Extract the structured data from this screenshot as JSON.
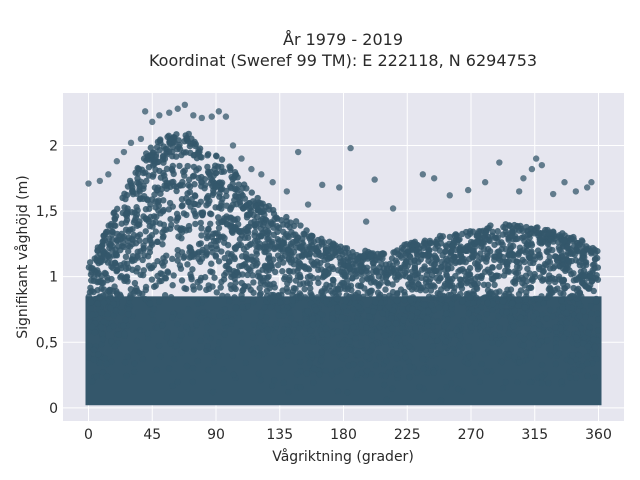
{
  "chart_data": {
    "type": "scatter",
    "title": [
      "År 1979 - 2019",
      "Koordinat (Sweref 99 TM): E 222118, N 6294753"
    ],
    "xlabel": "Vågriktning (grader)",
    "ylabel": "Signifikant våghöjd (m)",
    "xlim": [
      -18,
      378
    ],
    "ylim": [
      -0.1,
      2.4
    ],
    "xticks": [
      0,
      45,
      90,
      135,
      180,
      225,
      270,
      315,
      360
    ],
    "xtick_labels": [
      "0",
      "45",
      "90",
      "135",
      "180",
      "225",
      "270",
      "315",
      "360"
    ],
    "yticks": [
      0,
      0.5,
      1,
      1.5,
      2
    ],
    "ytick_labels": [
      "0",
      "0,5",
      "1",
      "1,5",
      "2"
    ],
    "grid": true,
    "background": "#e6e6ef",
    "marker_color": "#34576b",
    "envelope": {
      "x": [
        0,
        10,
        20,
        30,
        40,
        50,
        60,
        70,
        80,
        90,
        100,
        110,
        120,
        135,
        150,
        165,
        180,
        195,
        210,
        225,
        240,
        255,
        270,
        285,
        300,
        315,
        330,
        345,
        360
      ],
      "ymax": [
        1.1,
        1.3,
        1.55,
        1.75,
        1.95,
        2.05,
        2.1,
        2.1,
        2.0,
        1.95,
        1.85,
        1.7,
        1.6,
        1.5,
        1.4,
        1.3,
        1.22,
        1.2,
        1.2,
        1.25,
        1.3,
        1.32,
        1.35,
        1.4,
        1.4,
        1.4,
        1.35,
        1.3,
        1.2
      ]
    },
    "outliers": [
      [
        0,
        1.71
      ],
      [
        8,
        1.73
      ],
      [
        14,
        1.78
      ],
      [
        20,
        1.88
      ],
      [
        25,
        1.95
      ],
      [
        30,
        2.02
      ],
      [
        37,
        2.05
      ],
      [
        40,
        2.26
      ],
      [
        45,
        2.18
      ],
      [
        50,
        2.23
      ],
      [
        57,
        2.25
      ],
      [
        63,
        2.28
      ],
      [
        68,
        2.31
      ],
      [
        74,
        2.23
      ],
      [
        80,
        2.21
      ],
      [
        87,
        2.22
      ],
      [
        92,
        2.26
      ],
      [
        97,
        2.22
      ],
      [
        102,
        2.0
      ],
      [
        108,
        1.9
      ],
      [
        115,
        1.82
      ],
      [
        122,
        1.78
      ],
      [
        130,
        1.72
      ],
      [
        140,
        1.65
      ],
      [
        148,
        1.95
      ],
      [
        155,
        1.55
      ],
      [
        165,
        1.7
      ],
      [
        177,
        1.68
      ],
      [
        185,
        1.98
      ],
      [
        196,
        1.42
      ],
      [
        202,
        1.74
      ],
      [
        215,
        1.52
      ],
      [
        236,
        1.78
      ],
      [
        244,
        1.75
      ],
      [
        255,
        1.62
      ],
      [
        268,
        1.66
      ],
      [
        280,
        1.72
      ],
      [
        290,
        1.87
      ],
      [
        304,
        1.65
      ],
      [
        307,
        1.75
      ],
      [
        313,
        1.82
      ],
      [
        316,
        1.9
      ],
      [
        320,
        1.85
      ],
      [
        328,
        1.63
      ],
      [
        336,
        1.72
      ],
      [
        344,
        1.65
      ],
      [
        352,
        1.68
      ],
      [
        355,
        1.72
      ]
    ]
  }
}
